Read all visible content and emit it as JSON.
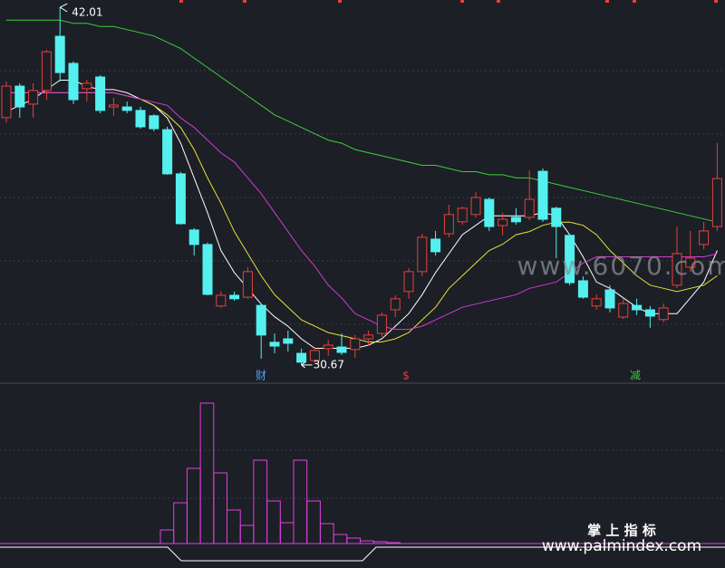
{
  "chart_data": [
    {
      "type": "candlestick",
      "up_color": "#e8403a",
      "down_color": "#54f0f0",
      "ylim": [
        30.18,
        42.24
      ],
      "open": [
        38.51,
        39.51,
        38.94,
        39.37,
        41.09,
        40.23,
        39.43,
        39.8,
        38.85,
        38.85,
        38.74,
        38.57,
        38.13,
        36.73,
        34.95,
        34.49,
        32.54,
        32.88,
        32.82,
        32.56,
        31.39,
        31.5,
        31.04,
        30.81,
        31.19,
        31.24,
        31.16,
        31.5,
        31.67,
        32.42,
        33.0,
        33.63,
        34.66,
        34.83,
        35.21,
        35.44,
        35.92,
        35.09,
        35.35,
        35.35,
        36.81,
        35.64,
        34.78,
        33.34,
        32.54,
        33.05,
        32.19,
        32.56,
        32.42,
        32.11,
        33.2,
        33.77,
        34.49,
        35.06
      ],
      "high": [
        39.66,
        39.6,
        39.6,
        40.66,
        42.01,
        40.29,
        39.71,
        39.86,
        39.14,
        39.02,
        38.85,
        38.62,
        38.22,
        36.79,
        35.01,
        34.55,
        33.0,
        33.0,
        33.77,
        32.62,
        31.67,
        31.76,
        31.19,
        31.24,
        31.47,
        31.67,
        31.62,
        31.76,
        32.34,
        32.88,
        33.74,
        34.83,
        34.92,
        35.75,
        35.69,
        36.15,
        35.98,
        35.49,
        35.64,
        36.84,
        36.9,
        35.69,
        34.83,
        33.48,
        32.91,
        33.2,
        32.77,
        32.77,
        32.54,
        32.62,
        35.06,
        34.92,
        35.21,
        37.7
      ],
      "low": [
        38.36,
        38.51,
        38.51,
        39.08,
        39.66,
        38.94,
        39.02,
        38.65,
        38.57,
        38.65,
        38.16,
        38.08,
        36.7,
        35.12,
        34.14,
        32.88,
        32.48,
        32.71,
        32.77,
        30.87,
        31.04,
        31.1,
        30.67,
        30.7,
        30.96,
        30.99,
        30.9,
        31.27,
        31.56,
        32.19,
        32.77,
        33.48,
        34.14,
        34.72,
        35.12,
        35.35,
        34.92,
        34.78,
        35.12,
        35.26,
        35.21,
        34.06,
        33.2,
        32.77,
        32.42,
        32.34,
        32.13,
        32.25,
        31.85,
        32.02,
        33.11,
        33.63,
        34.34,
        34.92
      ],
      "close": [
        39.51,
        38.85,
        39.37,
        40.6,
        39.94,
        39.08,
        39.6,
        38.74,
        38.91,
        38.74,
        38.22,
        38.16,
        36.73,
        35.15,
        34.49,
        32.91,
        32.88,
        32.77,
        33.63,
        31.62,
        31.27,
        31.36,
        30.76,
        31.13,
        31.3,
        31.07,
        31.5,
        31.62,
        32.25,
        32.77,
        33.63,
        34.72,
        34.26,
        35.44,
        35.64,
        35.98,
        35.06,
        35.29,
        35.21,
        35.92,
        35.29,
        35.06,
        33.28,
        32.82,
        32.77,
        32.48,
        32.62,
        32.42,
        32.22,
        32.48,
        34.2,
        34.06,
        34.92,
        36.58
      ],
      "series": [
        {
          "color": "#ffffff",
          "values": [
            38.7,
            38.9,
            39.1,
            39.4,
            39.7,
            39.7,
            39.5,
            39.4,
            39.4,
            39.3,
            39.1,
            38.9,
            38.5,
            37.7,
            36.6,
            35.5,
            34.3,
            33.6,
            33.1,
            32.6,
            32.2,
            31.9,
            31.5,
            31.2,
            31.2,
            31.2,
            31.2,
            31.3,
            31.5,
            31.9,
            32.3,
            32.9,
            33.6,
            34.2,
            34.8,
            35.1,
            35.4,
            35.4,
            35.4,
            35.4,
            35.5,
            35.4,
            34.8,
            34.1,
            33.3,
            33.1,
            32.8,
            32.5,
            32.3,
            32.3,
            32.3,
            32.8,
            33.3,
            34.3
          ]
        },
        {
          "color": "#e8e03a",
          "values": [
            39.3,
            39.3,
            39.3,
            39.3,
            39.3,
            39.3,
            39.3,
            39.3,
            39.3,
            39.2,
            39.1,
            38.9,
            38.6,
            38.2,
            37.5,
            36.6,
            35.8,
            34.9,
            34.2,
            33.5,
            32.9,
            32.5,
            32.1,
            31.9,
            31.7,
            31.6,
            31.5,
            31.4,
            31.4,
            31.5,
            31.7,
            32.1,
            32.5,
            33.1,
            33.5,
            33.9,
            34.3,
            34.5,
            34.8,
            34.9,
            35.1,
            35.2,
            35.2,
            35.1,
            34.8,
            34.3,
            33.9,
            33.5,
            33.2,
            33.1,
            33.0,
            33.1,
            33.2,
            33.5
          ]
        },
        {
          "color": "#d23ad2",
          "values": [
            39.3,
            39.3,
            39.3,
            39.3,
            39.3,
            39.3,
            39.3,
            39.3,
            39.3,
            39.2,
            39.1,
            39.0,
            38.9,
            38.5,
            38.2,
            37.8,
            37.4,
            37.1,
            36.6,
            36.1,
            35.5,
            34.9,
            34.3,
            33.8,
            33.2,
            32.8,
            32.3,
            32.1,
            31.9,
            31.8,
            31.8,
            31.9,
            32.1,
            32.3,
            32.5,
            32.6,
            32.7,
            32.8,
            32.9,
            33.1,
            33.2,
            33.3,
            33.6,
            33.9,
            34.1,
            34.1,
            34.1,
            34.1,
            34.1,
            34.1,
            34.1,
            34.1,
            34.1,
            34.2
          ]
        },
        {
          "color": "#3ccf3c",
          "values": [
            41.6,
            41.6,
            41.6,
            41.6,
            41.6,
            41.5,
            41.5,
            41.4,
            41.4,
            41.3,
            41.2,
            41.1,
            40.9,
            40.7,
            40.4,
            40.1,
            39.8,
            39.5,
            39.2,
            38.9,
            38.6,
            38.4,
            38.2,
            38.0,
            37.8,
            37.7,
            37.5,
            37.4,
            37.3,
            37.2,
            37.1,
            37.0,
            37.0,
            36.9,
            36.8,
            36.8,
            36.7,
            36.7,
            36.6,
            36.6,
            36.5,
            36.4,
            36.3,
            36.2,
            36.1,
            36.0,
            35.9,
            35.8,
            35.7,
            35.6,
            35.5,
            35.4,
            35.3,
            35.2
          ]
        }
      ],
      "annotations": [
        {
          "text": "财",
          "color": "#5a9cff"
        },
        {
          "text": "$",
          "color": "#ff3030"
        },
        {
          "text": "减",
          "color": "#33cc33"
        }
      ]
    },
    {
      "type": "bar",
      "color": "#e040e0",
      "ylim": [
        0,
        160
      ],
      "values": [
        15,
        45,
        83,
        155,
        78,
        37,
        20,
        92,
        47,
        23,
        92,
        47,
        22,
        10,
        6,
        3,
        2,
        1
      ]
    }
  ],
  "watermarks": [
    "www.6070.com",
    "掌 上 指 标",
    "www.palmindex.com"
  ]
}
